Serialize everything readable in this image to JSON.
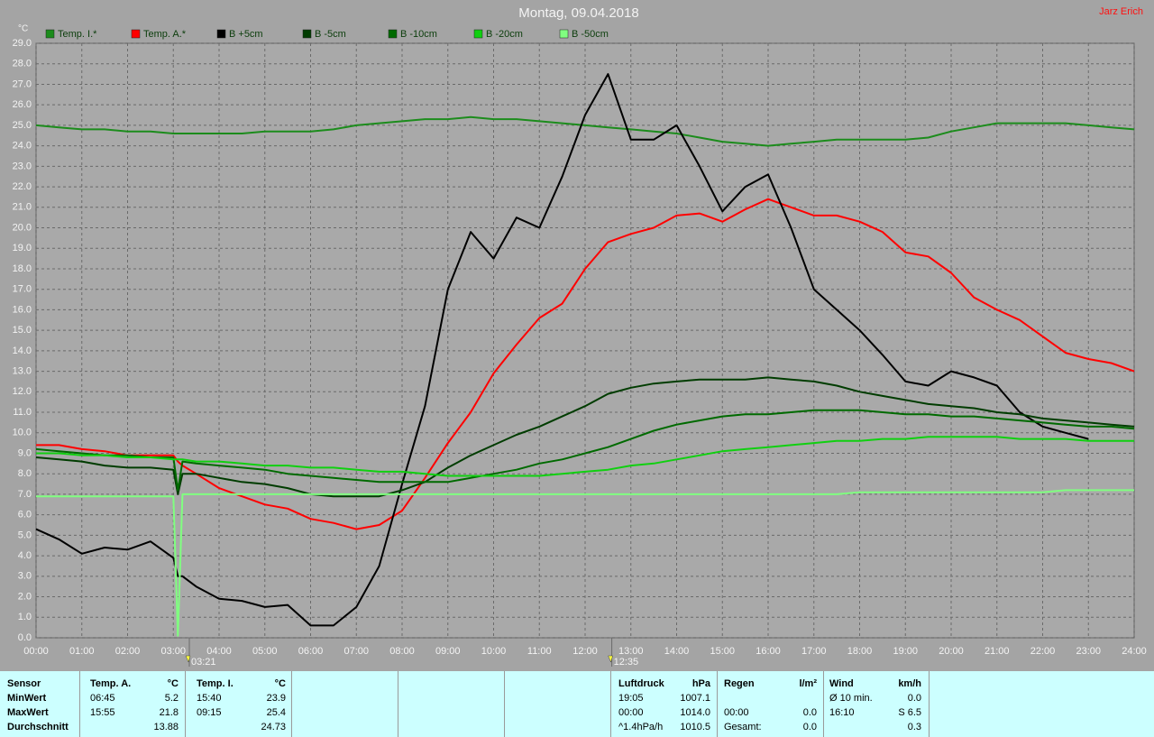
{
  "chart_data": {
    "type": "line",
    "title": "Montag, 09.04.2018",
    "author": "Jarz Erich",
    "y_unit": "°C",
    "legend": "top",
    "grid": true,
    "xlim": [
      0,
      24
    ],
    "ylim": [
      0,
      29
    ],
    "xticks": [
      {
        "value": 0,
        "label": "00:00"
      },
      {
        "value": 1,
        "label": "01:00"
      },
      {
        "value": 2,
        "label": "02:00"
      },
      {
        "value": 3,
        "label": "03:00"
      },
      {
        "value": 4,
        "label": "04:00"
      },
      {
        "value": 5,
        "label": "05:00"
      },
      {
        "value": 6,
        "label": "06:00"
      },
      {
        "value": 7,
        "label": "07:00"
      },
      {
        "value": 8,
        "label": "08:00"
      },
      {
        "value": 9,
        "label": "09:00"
      },
      {
        "value": 10,
        "label": "10:00"
      },
      {
        "value": 11,
        "label": "11:00"
      },
      {
        "value": 12,
        "label": "12:00"
      },
      {
        "value": 13,
        "label": "13:00"
      },
      {
        "value": 14,
        "label": "14:00"
      },
      {
        "value": 15,
        "label": "15:00"
      },
      {
        "value": 16,
        "label": "16:00"
      },
      {
        "value": 17,
        "label": "17:00"
      },
      {
        "value": 18,
        "label": "18:00"
      },
      {
        "value": 19,
        "label": "19:00"
      },
      {
        "value": 20,
        "label": "20:00"
      },
      {
        "value": 21,
        "label": "21:00"
      },
      {
        "value": 22,
        "label": "22:00"
      },
      {
        "value": 23,
        "label": "23:00"
      },
      {
        "value": 24,
        "label": "24:00"
      }
    ],
    "yticks": [
      {
        "value": 0,
        "label": "0.0"
      },
      {
        "value": 1,
        "label": "1.0"
      },
      {
        "value": 2,
        "label": "2.0"
      },
      {
        "value": 3,
        "label": "3.0"
      },
      {
        "value": 4,
        "label": "4.0"
      },
      {
        "value": 5,
        "label": "5.0"
      },
      {
        "value": 6,
        "label": "6.0"
      },
      {
        "value": 7,
        "label": "7.0"
      },
      {
        "value": 8,
        "label": "8.0"
      },
      {
        "value": 9,
        "label": "9.0"
      },
      {
        "value": 10,
        "label": "10.0"
      },
      {
        "value": 11,
        "label": "11.0"
      },
      {
        "value": 12,
        "label": "12.0"
      },
      {
        "value": 13,
        "label": "13.0"
      },
      {
        "value": 14,
        "label": "14.0"
      },
      {
        "value": 15,
        "label": "15.0"
      },
      {
        "value": 16,
        "label": "16.0"
      },
      {
        "value": 17,
        "label": "17.0"
      },
      {
        "value": 18,
        "label": "18.0"
      },
      {
        "value": 19,
        "label": "19.0"
      },
      {
        "value": 20,
        "label": "20.0"
      },
      {
        "value": 21,
        "label": "21.0"
      },
      {
        "value": 22,
        "label": "22.0"
      },
      {
        "value": 23,
        "label": "23.0"
      },
      {
        "value": 24,
        "label": "24.0"
      },
      {
        "value": 25,
        "label": "25.0"
      },
      {
        "value": 26,
        "label": "26.0"
      },
      {
        "value": 27,
        "label": "27.0"
      },
      {
        "value": 28,
        "label": "28.0"
      },
      {
        "value": 29,
        "label": "29.0"
      }
    ],
    "annotations": [
      {
        "x": 3.35,
        "label": "03:21"
      },
      {
        "x": 12.583,
        "label": "12:35"
      }
    ],
    "x": [
      0,
      0.5,
      1,
      1.5,
      2,
      2.5,
      3,
      3.1,
      3.2,
      3.5,
      4,
      4.5,
      5,
      5.5,
      6,
      6.5,
      7,
      7.5,
      8,
      8.5,
      9,
      9.5,
      10,
      10.5,
      11,
      11.5,
      12,
      12.5,
      13,
      13.5,
      14,
      14.5,
      15,
      15.5,
      16,
      16.5,
      17,
      17.5,
      18,
      18.5,
      19,
      19.5,
      20,
      20.5,
      21,
      21.5,
      22,
      22.5,
      23,
      23.5,
      24
    ],
    "series": [
      {
        "name": "Temp. I.*",
        "color": "#1c8c1c",
        "values": [
          25.0,
          24.9,
          24.8,
          24.8,
          24.7,
          24.7,
          24.6,
          24.6,
          24.6,
          24.6,
          24.6,
          24.6,
          24.7,
          24.7,
          24.7,
          24.8,
          25.0,
          25.1,
          25.2,
          25.3,
          25.3,
          25.4,
          25.3,
          25.3,
          25.2,
          25.1,
          25.0,
          24.9,
          24.8,
          24.7,
          24.6,
          24.4,
          24.2,
          24.1,
          24.0,
          24.1,
          24.2,
          24.3,
          24.3,
          24.3,
          24.3,
          24.4,
          24.7,
          24.9,
          25.1,
          25.1,
          25.1,
          25.1,
          25.0,
          24.9,
          24.8
        ]
      },
      {
        "name": "Temp. A.*",
        "color": "#ff0000",
        "values": [
          9.4,
          9.4,
          9.2,
          9.1,
          8.9,
          8.9,
          8.9,
          8.6,
          8.4,
          8.0,
          7.3,
          6.9,
          6.5,
          6.3,
          5.8,
          5.6,
          5.3,
          5.5,
          6.2,
          7.8,
          9.5,
          11.0,
          12.9,
          14.3,
          15.6,
          16.3,
          18.0,
          19.3,
          19.7,
          20.0,
          20.6,
          20.7,
          20.3,
          20.9,
          21.4,
          21.0,
          20.6,
          20.6,
          20.3,
          19.8,
          18.8,
          18.6,
          17.8,
          16.6,
          16.0,
          15.5,
          14.7,
          13.9,
          13.6,
          13.4,
          13.0
        ]
      },
      {
        "name": "B +5cm",
        "color": "#000000",
        "values": [
          5.3,
          4.8,
          4.1,
          4.4,
          4.3,
          4.7,
          3.9,
          3.0,
          3.0,
          2.5,
          1.9,
          1.8,
          1.5,
          1.6,
          0.6,
          0.6,
          1.5,
          3.5,
          7.5,
          11.3,
          17.0,
          19.8,
          18.5,
          20.5,
          20.0,
          22.5,
          25.5,
          27.5,
          24.3,
          24.3,
          25.0,
          23.0,
          20.8,
          22.0,
          22.6,
          20.0,
          17.0,
          16.0,
          15.0,
          13.8,
          12.5,
          12.3,
          13.0,
          12.7,
          12.3,
          11.0,
          10.3,
          10.0,
          9.7,
          null,
          null
        ]
      },
      {
        "name": "B -5cm",
        "color": "#003c00",
        "values": [
          8.8,
          8.7,
          8.6,
          8.4,
          8.3,
          8.3,
          8.2,
          7.0,
          8.0,
          8.0,
          7.8,
          7.6,
          7.5,
          7.3,
          7.0,
          6.9,
          6.9,
          6.9,
          7.2,
          7.6,
          8.3,
          8.9,
          9.4,
          9.9,
          10.3,
          10.8,
          11.3,
          11.9,
          12.2,
          12.4,
          12.5,
          12.6,
          12.6,
          12.6,
          12.7,
          12.6,
          12.5,
          12.3,
          12.0,
          11.8,
          11.6,
          11.4,
          11.3,
          11.2,
          11.0,
          10.9,
          10.7,
          10.6,
          10.5,
          10.4,
          10.3
        ]
      },
      {
        "name": "B -10cm",
        "color": "#006a00",
        "values": [
          9.2,
          9.1,
          9.0,
          8.9,
          8.9,
          8.8,
          8.8,
          7.2,
          8.6,
          8.5,
          8.4,
          8.3,
          8.2,
          8.0,
          7.9,
          7.8,
          7.7,
          7.6,
          7.6,
          7.6,
          7.6,
          7.8,
          8.0,
          8.2,
          8.5,
          8.7,
          9.0,
          9.3,
          9.7,
          10.1,
          10.4,
          10.6,
          10.8,
          10.9,
          10.9,
          11.0,
          11.1,
          11.1,
          11.1,
          11.0,
          10.9,
          10.9,
          10.8,
          10.8,
          10.7,
          10.6,
          10.5,
          10.4,
          10.3,
          10.3,
          10.2
        ]
      },
      {
        "name": "B -20cm",
        "color": "#10d010",
        "values": [
          9.0,
          9.0,
          8.9,
          8.9,
          8.8,
          8.8,
          8.7,
          8.7,
          8.7,
          8.6,
          8.6,
          8.5,
          8.4,
          8.4,
          8.3,
          8.3,
          8.2,
          8.1,
          8.1,
          8.0,
          7.9,
          7.9,
          7.9,
          7.9,
          7.9,
          8.0,
          8.1,
          8.2,
          8.4,
          8.5,
          8.7,
          8.9,
          9.1,
          9.2,
          9.3,
          9.4,
          9.5,
          9.6,
          9.6,
          9.7,
          9.7,
          9.8,
          9.8,
          9.8,
          9.8,
          9.7,
          9.7,
          9.7,
          9.6,
          9.6,
          9.6
        ]
      },
      {
        "name": "B -50cm",
        "color": "#80ff80",
        "values": [
          6.9,
          6.9,
          6.9,
          6.9,
          6.9,
          6.9,
          6.9,
          0.1,
          7.0,
          7.0,
          7.0,
          7.0,
          7.0,
          7.0,
          7.0,
          7.0,
          7.0,
          7.0,
          7.0,
          7.0,
          7.0,
          7.0,
          7.0,
          7.0,
          7.0,
          7.0,
          7.0,
          7.0,
          7.0,
          7.0,
          7.0,
          7.0,
          7.0,
          7.0,
          7.0,
          7.0,
          7.0,
          7.0,
          7.1,
          7.1,
          7.1,
          7.1,
          7.1,
          7.1,
          7.1,
          7.1,
          7.1,
          7.2,
          7.2,
          7.2,
          7.2
        ]
      }
    ]
  },
  "stats_table": {
    "header": [
      "Sensor",
      "Temp. A.",
      "°C",
      "Temp. I.",
      "°C",
      "Luftdruck",
      "hPa",
      "Regen",
      "l/m²",
      "Wind",
      "km/h"
    ],
    "rows": [
      [
        "MinWert",
        "06:45",
        "5.2",
        "15:40",
        "23.9",
        "19:05",
        "1007.1",
        null,
        null,
        "Ø 10 min.",
        "0.0"
      ],
      [
        "MaxWert",
        "15:55",
        "21.8",
        "09:15",
        "25.4",
        "00:00",
        "1014.0",
        "00:00",
        "0.0",
        "16:10",
        "S 6.5"
      ],
      [
        "Durchschnitt",
        null,
        "13.88",
        null,
        "24.73",
        "^1.4hPa/h",
        "1010.5",
        "Gesamt:",
        "0.0",
        null,
        "0.3"
      ]
    ]
  }
}
